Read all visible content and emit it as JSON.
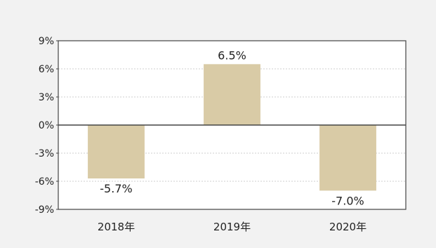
{
  "chart_data": {
    "type": "bar",
    "categories": [
      "2018年",
      "2019年",
      "2020年"
    ],
    "values": [
      -5.7,
      6.5,
      -7.0
    ],
    "data_labels": [
      "-5.7%",
      "6.5%",
      "-7.0%"
    ],
    "y_ticks": [
      "9%",
      "6%",
      "3%",
      "0%",
      "-3%",
      "-6%",
      "-9%"
    ],
    "y_tick_values": [
      9,
      6,
      3,
      0,
      -3,
      -6,
      -9
    ],
    "ylim": [
      -9,
      9
    ],
    "grid": true,
    "colors": {
      "bar": "#d9cba6",
      "background": "#f2f2f2",
      "plot_background": "#ffffff",
      "axis": "#444444",
      "grid": "#cfcfcf",
      "text": "#222222"
    }
  }
}
